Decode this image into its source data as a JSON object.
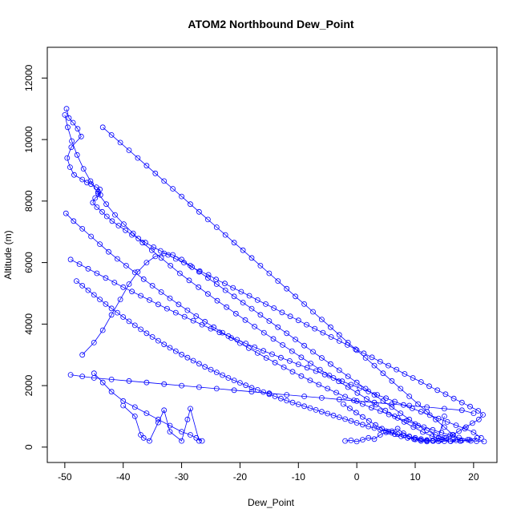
{
  "chart_data": {
    "type": "line",
    "title": "ATOM2 Northbound Dew_Point",
    "xlabel": "Dew_Point",
    "ylabel": "Altitude (m)",
    "xlim": [
      -53,
      24
    ],
    "ylim": [
      -500,
      13000
    ],
    "xticks": [
      -50,
      -40,
      -30,
      -20,
      -10,
      0,
      10,
      20
    ],
    "yticks": [
      0,
      2000,
      4000,
      6000,
      8000,
      10000,
      12000
    ],
    "marker": "open-circle",
    "series_color": "#0000ff",
    "grid": false,
    "legend": "none",
    "series": [
      {
        "x": [
          -49.7,
          -49.3,
          -48.6,
          -47.8,
          -47.2,
          -48.9,
          -49.6,
          -49.1,
          -48.4,
          -47.0,
          -46.2,
          -45.5,
          -44.6,
          -44.0,
          -44.3,
          -43.9,
          -44.8,
          -45.2,
          -44.5,
          -43.6,
          -42.8,
          -41.9,
          -40.8,
          -39.6,
          -38.5,
          -37.4,
          -36.2,
          -34.8,
          -33.6,
          -32.3,
          -31.0,
          -29.6,
          -28.2,
          -26.9,
          -25.4,
          -24.1,
          -22.6,
          -21.2,
          -19.8,
          -18.4,
          -17.0,
          -15.6,
          -14.2,
          -12.8,
          -11.4,
          -10.0,
          -8.6,
          -7.2,
          -5.8,
          -4.4,
          -3.0,
          -1.6,
          -0.2,
          1.2,
          2.6,
          4.0,
          5.4,
          6.8,
          8.2,
          9.6,
          11.0,
          12.4,
          13.8,
          15.2,
          16.6,
          18.0,
          19.4,
          20.8,
          21.6,
          20.9,
          19.8,
          18.7,
          17.5,
          16.4,
          15.3,
          14.2,
          13.1,
          12.0,
          10.9,
          9.8,
          8.7,
          7.6,
          6.5,
          5.4,
          4.3,
          3.2,
          2.1,
          1.0,
          -0.1,
          -1.2,
          -2.3
        ],
        "y": [
          11000,
          10700,
          10550,
          10350,
          10100,
          9750,
          9400,
          9100,
          8850,
          8700,
          8600,
          8550,
          8450,
          8380,
          8300,
          8200,
          8100,
          7950,
          7800,
          7650,
          7500,
          7350,
          7200,
          7050,
          6900,
          6780,
          6650,
          6500,
          6380,
          6250,
          6120,
          6000,
          5850,
          5720,
          5600,
          5450,
          5320,
          5180,
          5050,
          4920,
          4780,
          4650,
          4520,
          4380,
          4250,
          4120,
          3980,
          3850,
          3720,
          3580,
          3450,
          3320,
          3180,
          3050,
          2920,
          2780,
          2650,
          2520,
          2380,
          2250,
          2120,
          1980,
          1850,
          1720,
          1580,
          1450,
          1320,
          1180,
          1050,
          900,
          780,
          650,
          520,
          400,
          300,
          220,
          200,
          210,
          230,
          260,
          300,
          350,
          420,
          500,
          600,
          720,
          850,
          980,
          1120,
          1260,
          1400
        ]
      },
      {
        "x": [
          -43.5,
          -42.0,
          -40.5,
          -39.0,
          -37.5,
          -36.0,
          -34.5,
          -33.0,
          -31.5,
          -30.0,
          -28.5,
          -27.0,
          -25.5,
          -24.0,
          -22.5,
          -21.0,
          -19.5,
          -18.0,
          -16.5,
          -15.0,
          -13.5,
          -12.0,
          -10.5,
          -9.0,
          -7.5,
          -6.0,
          -4.5,
          -3.0,
          -1.5,
          0.0,
          1.5,
          3.0,
          4.5,
          6.0,
          7.5,
          9.0,
          10.5,
          12.0,
          13.5,
          15.0,
          16.5,
          17.8
        ],
        "y": [
          10400,
          10150,
          9900,
          9650,
          9400,
          9150,
          8900,
          8650,
          8400,
          8150,
          7900,
          7650,
          7400,
          7150,
          6900,
          6650,
          6400,
          6150,
          5900,
          5650,
          5400,
          5150,
          4900,
          4650,
          4400,
          4150,
          3900,
          3650,
          3400,
          3150,
          2900,
          2650,
          2400,
          2150,
          1900,
          1650,
          1400,
          1150,
          900,
          650,
          400,
          200
        ]
      },
      {
        "x": [
          -50.0,
          -49.5,
          -48.8,
          -47.9,
          -46.8,
          -45.6,
          -44.3,
          -42.9,
          -41.4,
          -39.9,
          -38.3,
          -36.7,
          -35.1,
          -33.5,
          -31.9,
          -30.3,
          -28.7,
          -27.1,
          -25.5,
          -23.9,
          -22.3,
          -20.7,
          -19.1,
          -17.5,
          -15.9,
          -14.3,
          -12.7,
          -11.1,
          -9.5,
          -7.9,
          -6.3,
          -4.7,
          -3.1,
          -1.5,
          0.1,
          1.7,
          3.3,
          4.9,
          6.5,
          8.1,
          9.7,
          11.3,
          12.9,
          14.5,
          16.1,
          17.7,
          19.3,
          20.6
        ],
        "y": [
          10800,
          10400,
          9950,
          9500,
          9050,
          8650,
          8250,
          7900,
          7550,
          7250,
          6950,
          6650,
          6400,
          6150,
          5900,
          5650,
          5420,
          5200,
          4980,
          4760,
          4550,
          4340,
          4130,
          3920,
          3720,
          3520,
          3320,
          3120,
          2920,
          2720,
          2520,
          2330,
          2140,
          1950,
          1760,
          1570,
          1380,
          1190,
          1000,
          820,
          650,
          490,
          350,
          240,
          190,
          200,
          240,
          300
        ]
      },
      {
        "x": [
          -49.8,
          -48.5,
          -47.0,
          -45.5,
          -44.0,
          -42.5,
          -41.0,
          -39.5,
          -38.0,
          -36.5,
          -35.0,
          -33.5,
          -32.0,
          -30.5,
          -29.0,
          -27.5,
          -26.0,
          -24.5,
          -23.0,
          -21.5,
          -20.0,
          -18.5,
          -17.0,
          -15.5,
          -14.0,
          -12.5,
          -11.0,
          -9.5,
          -8.0,
          -6.5,
          -5.0,
          -3.5,
          -2.0,
          -0.5,
          1.0,
          2.5,
          4.0,
          5.5,
          7.0,
          8.5,
          10.0,
          11.5,
          13.0,
          14.5,
          16.0,
          17.5,
          19.0,
          20.5,
          21.8
        ],
        "y": [
          7600,
          7350,
          7100,
          6850,
          6600,
          6350,
          6120,
          5900,
          5680,
          5460,
          5250,
          5040,
          4840,
          4640,
          4450,
          4260,
          4080,
          3900,
          3720,
          3550,
          3380,
          3220,
          3060,
          2900,
          2750,
          2600,
          2450,
          2310,
          2170,
          2030,
          1900,
          1770,
          1640,
          1520,
          1400,
          1280,
          1170,
          1060,
          950,
          850,
          750,
          650,
          560,
          470,
          390,
          310,
          240,
          190,
          180
        ]
      },
      {
        "x": [
          -49.0,
          -47.5,
          -46.0,
          -44.5,
          -43.0,
          -41.5,
          -40.0,
          -38.5,
          -37.0,
          -35.5,
          -34.0,
          -32.5,
          -31.0,
          -29.5,
          -28.0,
          -26.5,
          -25.0,
          -23.5,
          -22.0,
          -20.5,
          -19.0,
          -17.5,
          -16.0,
          -14.5,
          -13.0,
          -11.5,
          -10.0,
          -8.5,
          -7.0,
          -5.5,
          -4.0,
          -2.5,
          -1.0,
          0.5,
          2.0,
          3.5,
          5.0,
          6.5,
          8.0,
          9.5,
          11.0,
          12.5,
          14.0,
          15.5,
          17.0,
          18.5,
          20.0,
          21.3
        ],
        "y": [
          6100,
          5950,
          5800,
          5650,
          5500,
          5350,
          5200,
          5060,
          4920,
          4780,
          4640,
          4500,
          4370,
          4240,
          4110,
          3980,
          3850,
          3730,
          3610,
          3490,
          3370,
          3250,
          3130,
          3020,
          2910,
          2800,
          2690,
          2580,
          2470,
          2360,
          2250,
          2140,
          2030,
          1920,
          1810,
          1700,
          1590,
          1480,
          1370,
          1260,
          1150,
          1040,
          930,
          820,
          710,
          600,
          480,
          300
        ]
      },
      {
        "x": [
          -48.0,
          -47.0,
          -46.0,
          -45.0,
          -44.0,
          -43.0,
          -42.0,
          -41.0,
          -40.0,
          -39.0,
          -38.0,
          -37.0,
          -36.0,
          -35.0,
          -34.0,
          -33.0,
          -32.0,
          -31.0,
          -30.0,
          -29.0,
          -28.0,
          -27.0,
          -26.0,
          -25.0,
          -24.0,
          -23.0,
          -22.0,
          -21.0,
          -20.0,
          -19.0,
          -18.0,
          -17.0,
          -16.0,
          -15.0,
          -14.0,
          -13.0,
          -12.0,
          -11.0,
          -10.0,
          -9.0,
          -8.0,
          -7.0,
          -6.0,
          -5.0,
          -4.0,
          -3.0,
          -2.0,
          -1.0,
          0.0,
          1.0,
          2.0,
          3.0,
          4.0,
          5.0,
          6.0,
          7.0,
          8.0,
          9.0,
          10.0,
          11.0,
          12.0,
          13.0,
          14.0,
          15.0,
          16.0,
          17.0
        ],
        "y": [
          5400,
          5250,
          5100,
          4950,
          4800,
          4650,
          4510,
          4370,
          4230,
          4090,
          3960,
          3830,
          3700,
          3580,
          3460,
          3340,
          3230,
          3120,
          3010,
          2910,
          2810,
          2710,
          2610,
          2520,
          2430,
          2340,
          2250,
          2170,
          2090,
          2010,
          1930,
          1860,
          1790,
          1720,
          1650,
          1580,
          1510,
          1450,
          1390,
          1330,
          1270,
          1210,
          1150,
          1090,
          1030,
          970,
          910,
          850,
          790,
          730,
          670,
          620,
          570,
          520,
          470,
          420,
          380,
          340,
          300,
          260,
          230,
          200,
          190,
          190,
          200,
          220
        ]
      },
      {
        "x": [
          -47.0,
          -45.0,
          -43.5,
          -42.0,
          -40.5,
          -39.0,
          -37.5,
          -36.0,
          -34.5,
          -33.0,
          -31.5,
          -30.0,
          -28.5,
          -27.0,
          -25.5,
          -24.0,
          -22.5,
          -21.0,
          -19.5,
          -18.0,
          -16.5,
          -15.0,
          -13.5,
          -12.0,
          -10.5,
          -9.0,
          -7.5,
          -6.0,
          -4.5,
          -3.0,
          -1.5,
          0.0,
          1.5,
          3.0,
          4.5,
          6.0,
          7.5,
          9.0,
          10.5,
          12.0,
          13.5,
          15.0,
          16.5,
          18.0,
          19.5
        ],
        "y": [
          3000,
          3400,
          3800,
          4300,
          4800,
          5300,
          5700,
          6000,
          6200,
          6300,
          6250,
          6100,
          5900,
          5700,
          5500,
          5300,
          5100,
          4900,
          4700,
          4500,
          4300,
          4100,
          3900,
          3700,
          3500,
          3300,
          3100,
          2900,
          2700,
          2500,
          2300,
          2100,
          1900,
          1700,
          1500,
          1300,
          1100,
          900,
          700,
          550,
          400,
          300,
          250,
          220,
          200
        ]
      },
      {
        "x": [
          -49.0,
          -47.0,
          -45.0,
          -42.0,
          -39.0,
          -36.0,
          -33.0,
          -30.0,
          -27.0,
          -24.0,
          -21.0,
          -18.0,
          -15.0,
          -12.0,
          -9.0,
          -6.0,
          -3.0,
          0.0,
          3.0,
          6.0,
          9.0,
          12.0,
          15.0,
          18.0,
          20.0
        ],
        "y": [
          2350,
          2300,
          2250,
          2200,
          2150,
          2100,
          2050,
          2000,
          1950,
          1900,
          1850,
          1800,
          1750,
          1700,
          1650,
          1600,
          1550,
          1500,
          1450,
          1400,
          1350,
          1300,
          1250,
          1200,
          1100
        ]
      },
      {
        "x": [
          -45.0,
          -43.5,
          -42.0,
          -40.0,
          -38.0,
          -36.0,
          -34.0,
          -32.0,
          -30.0,
          -28.5,
          -27.5,
          -26.5
        ],
        "y": [
          2400,
          2100,
          1800,
          1500,
          1300,
          1100,
          900,
          700,
          500,
          400,
          300,
          200
        ]
      },
      {
        "x": [
          -40.0,
          -38.0,
          -37.0,
          -36.5,
          -35.5,
          -34.0,
          -33.0,
          -32.0,
          -30.0,
          -29.0,
          -28.5,
          -27.0
        ],
        "y": [
          1350,
          1000,
          400,
          300,
          200,
          800,
          1200,
          500,
          200,
          900,
          1250,
          200
        ]
      },
      {
        "x": [
          -2.0,
          -1.0,
          0.0,
          1.0,
          2.0,
          3.0,
          4.0,
          5.0,
          6.0,
          7.0,
          8.0,
          9.0,
          10.0,
          11.0,
          12.0,
          13.0,
          14.0,
          15.0
        ],
        "y": [
          200,
          220,
          180,
          240,
          300,
          260,
          400,
          480,
          520,
          600,
          450,
          350,
          250,
          200,
          180,
          220,
          300,
          1000
        ]
      }
    ]
  }
}
